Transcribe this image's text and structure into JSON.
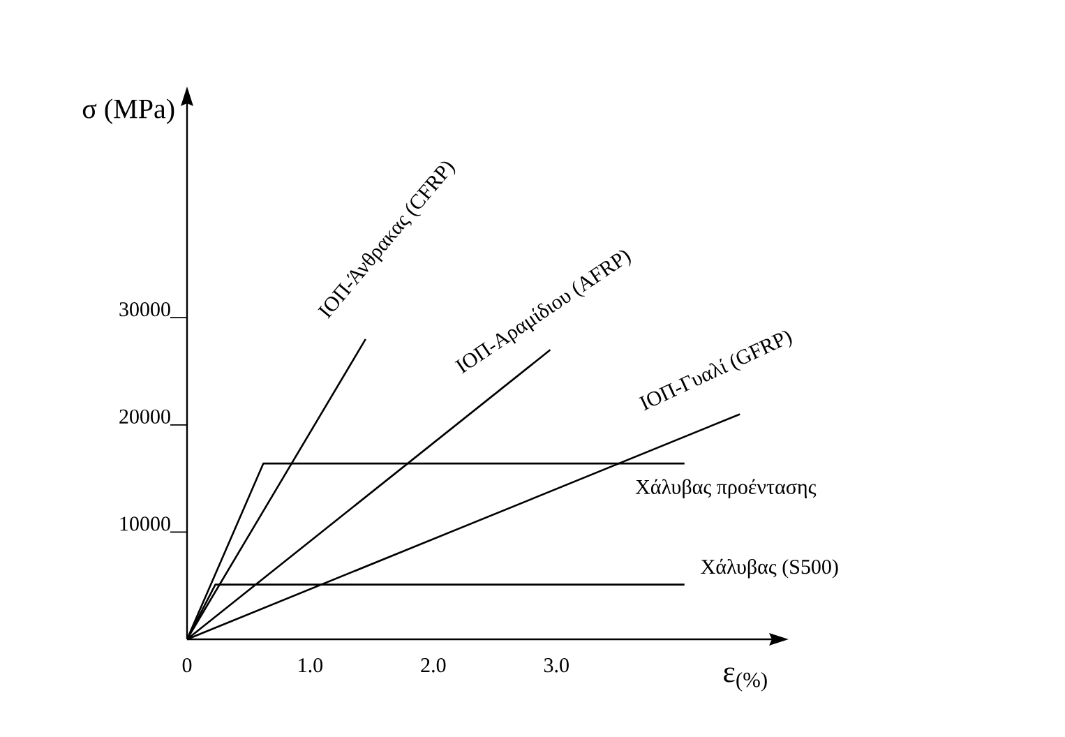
{
  "chart_data": {
    "type": "line",
    "xlabel": "ε$_{(%)}$",
    "ylabel": "σ (MPa)",
    "xlim": [
      0,
      4.75
    ],
    "ylim": [
      0,
      50000
    ],
    "xticks": [
      {
        "value": 0,
        "label": "0"
      },
      {
        "value": 1,
        "label": "1.0"
      },
      {
        "value": 2,
        "label": "2.0"
      },
      {
        "value": 3,
        "label": "3.0"
      }
    ],
    "yticks": [
      10000,
      20000,
      30000
    ],
    "grid": false,
    "legend": false,
    "marker": "none",
    "line_style": "solid",
    "series": [
      {
        "name": "ΙΟΠ-Άνθρακας (CFRP)",
        "color": "#000000",
        "x": [
          0,
          1.45
        ],
        "values": [
          0,
          28000
        ]
      },
      {
        "name": "ΙΟΠ-Αραμίδιου  (AFRP)",
        "color": "#000000",
        "x": [
          0,
          2.95
        ],
        "values": [
          0,
          27000
        ]
      },
      {
        "name": "ΙΟΠ-Γυαλί (GFRP)",
        "color": "#000000",
        "x": [
          0,
          4.49
        ],
        "values": [
          0,
          21000
        ]
      },
      {
        "name": "Χάλυβας προέντασης",
        "color": "#000000",
        "x": [
          0,
          0.62,
          4.04
        ],
        "values": [
          0,
          16400,
          16400
        ]
      },
      {
        "name": "Χάλυβας (S500)",
        "color": "#000000",
        "x": [
          0,
          0.23,
          4.04
        ],
        "values": [
          0,
          5100,
          5100
        ]
      }
    ]
  }
}
